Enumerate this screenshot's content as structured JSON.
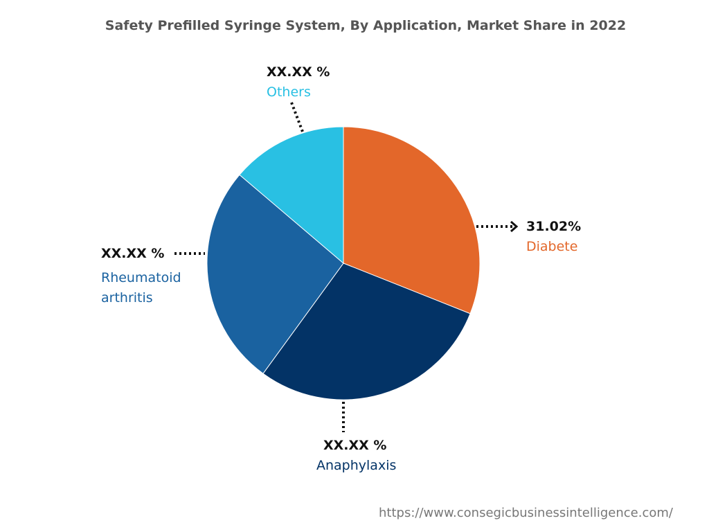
{
  "chart_data": {
    "type": "pie",
    "title": "Safety Prefilled Syringe System, By Application, Market Share in 2022",
    "slices": [
      {
        "label": "Diabete",
        "value": 31.02,
        "value_label": "31.02%",
        "color": "#E3672A"
      },
      {
        "label": "Anaphylaxis",
        "value": 29.0,
        "value_label": "XX.XX %",
        "color": "#033366"
      },
      {
        "label": "Rheumatoid arthritis",
        "value": 26.2,
        "value_label": "XX.XX %",
        "color": "#1A62A0"
      },
      {
        "label": "Others",
        "value": 13.78,
        "value_label": "XX.XX %",
        "color": "#29C0E3"
      }
    ],
    "start": "top",
    "direction": "clockwise"
  },
  "footer": {
    "url": "https://www.consegicbusinessintelligence.com/"
  }
}
